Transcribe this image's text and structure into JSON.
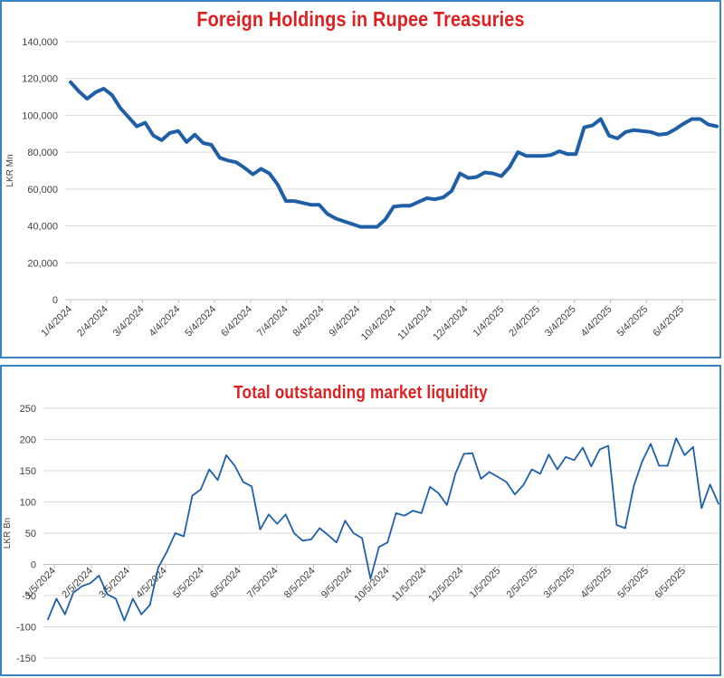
{
  "chart_data": [
    {
      "type": "line",
      "title": "Foreign Holdings in Rupee Treasuries",
      "ylabel": "LKR Mn",
      "xlabel": "",
      "ylim": [
        0,
        140000
      ],
      "y_ticks": [
        "0",
        "20,000",
        "40,000",
        "60,000",
        "80,000",
        "100,000",
        "120,000",
        "140,000"
      ],
      "x_ticks": [
        "1/4/2024",
        "2/4/2024",
        "3/4/2024",
        "4/4/2024",
        "5/4/2024",
        "6/4/2024",
        "7/4/2024",
        "8/4/2024",
        "9/4/2024",
        "10/4/2024",
        "11/4/2024",
        "12/4/2024",
        "1/4/2025",
        "2/4/2025",
        "3/4/2025",
        "4/4/2025",
        "5/4/2025",
        "6/4/2025"
      ],
      "grid": true,
      "color": "#1f5fa8",
      "series": [
        {
          "values": [
            118000,
            113000,
            109000,
            112500,
            114500,
            111000,
            104000,
            99000,
            94000,
            96000,
            89000,
            86500,
            90500,
            91500,
            85500,
            89500,
            85000,
            84000,
            77000,
            75500,
            74500,
            71500,
            68000,
            71000,
            68500,
            62500,
            53500,
            53500,
            52500,
            51500,
            51500,
            46500,
            44000,
            42500,
            41000,
            39500,
            39500,
            39500,
            43500,
            50500,
            51000,
            51000,
            53000,
            55000,
            54500,
            55500,
            59000,
            68500,
            66000,
            66500,
            69000,
            68500,
            67000,
            72000,
            80000,
            78000,
            78000,
            78000,
            78500,
            80500,
            79000,
            79000,
            93500,
            94500,
            98000,
            89000,
            87500,
            91000,
            92000,
            91500,
            91000,
            89500,
            90000,
            92500,
            95500,
            98000,
            98000,
            95000,
            94000
          ]
        }
      ]
    },
    {
      "type": "line",
      "title": "Total outstanding market liquidity",
      "ylabel": "LKR Bn",
      "xlabel": "",
      "ylim": [
        -150,
        250
      ],
      "y_ticks": [
        "-150",
        "-100",
        "-50",
        "0",
        "50",
        "100",
        "150",
        "200",
        "250"
      ],
      "x_ticks": [
        "1/5/2024",
        "2/5/2024",
        "3/5/2024",
        "4/5/2024",
        "5/5/2024",
        "6/5/2024",
        "7/5/2024",
        "8/5/2024",
        "9/5/2024",
        "10/5/2024",
        "11/5/2024",
        "12/5/2024",
        "1/5/2025",
        "2/5/2025",
        "3/5/2025",
        "4/5/2025",
        "5/5/2025",
        "6/5/2025"
      ],
      "grid": true,
      "color": "#1f5fa8",
      "series": [
        {
          "values": [
            -88,
            -55,
            -80,
            -45,
            -35,
            -30,
            -18,
            -48,
            -55,
            -90,
            -55,
            -80,
            -65,
            -5,
            20,
            50,
            45,
            110,
            120,
            152,
            135,
            175,
            158,
            132,
            125,
            56,
            80,
            65,
            80,
            50,
            38,
            40,
            58,
            47,
            35,
            70,
            50,
            42,
            -23,
            28,
            35,
            82,
            78,
            86,
            82,
            124,
            114,
            95,
            145,
            177,
            178,
            137,
            148,
            140,
            132,
            112,
            127,
            152,
            145,
            176,
            152,
            172,
            167,
            187,
            157,
            184,
            190,
            63,
            58,
            125,
            165,
            193,
            158,
            158,
            202,
            175,
            188,
            90,
            128,
            97
          ]
        }
      ]
    }
  ]
}
